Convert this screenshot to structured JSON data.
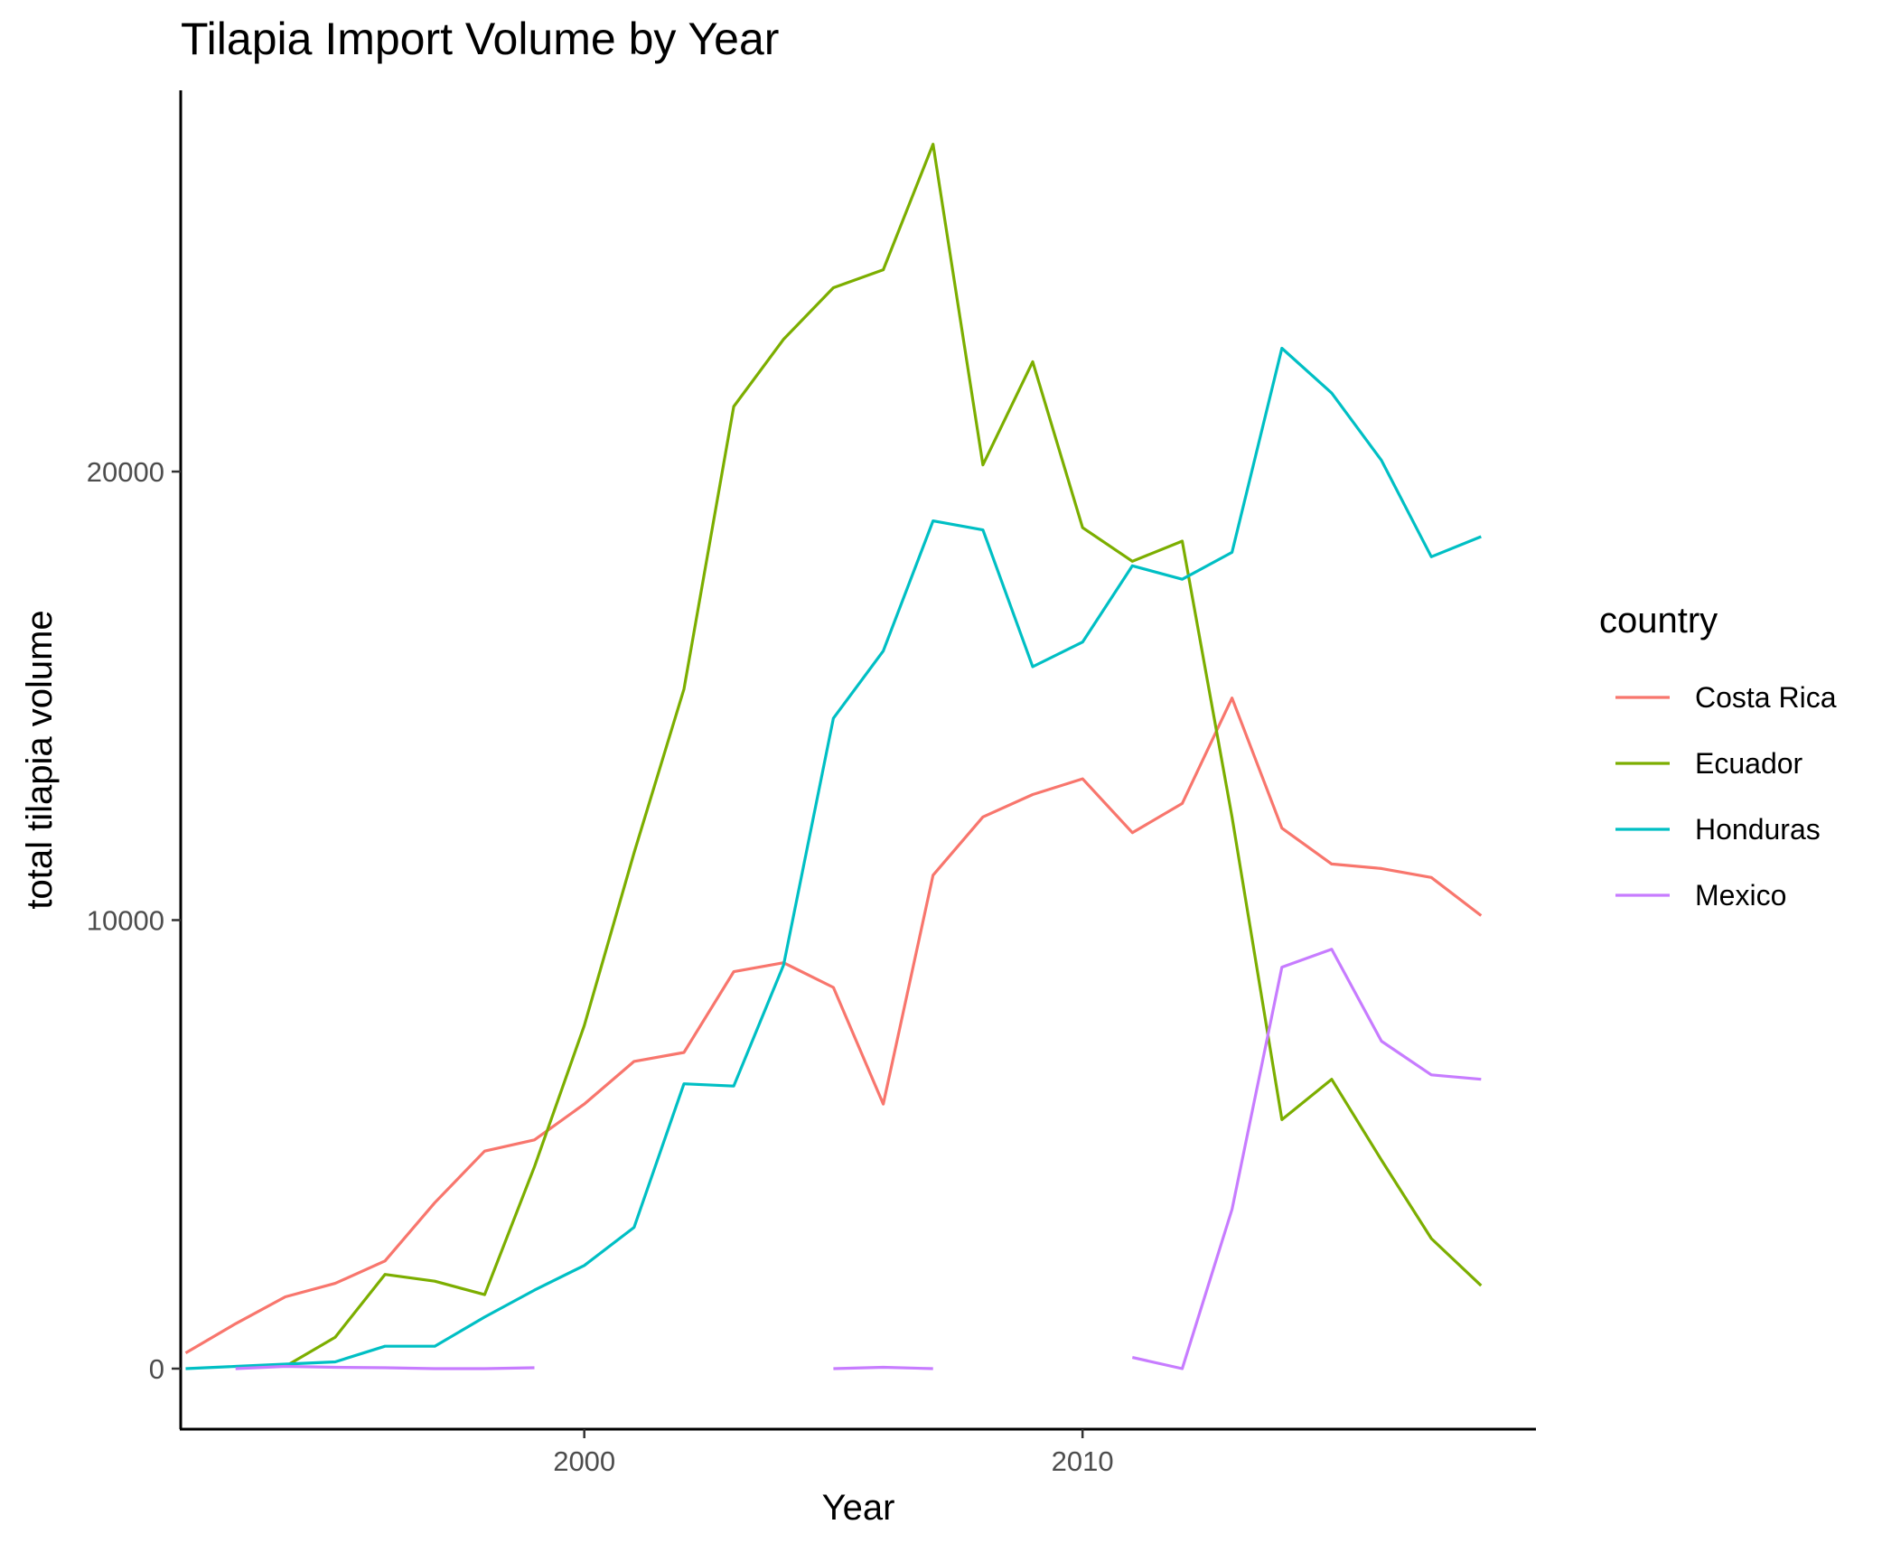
{
  "chart_data": {
    "type": "line",
    "title": "Tilapia Import Volume by Year",
    "xlabel": "Year",
    "ylabel": "total tilapia volume",
    "xlim": [
      1991.9,
      2019.1
    ],
    "ylim": [
      -1350,
      28500
    ],
    "x_ticks": [
      2000,
      2010
    ],
    "y_ticks": [
      0,
      10000,
      20000
    ],
    "grid": false,
    "legend": {
      "title": "country",
      "position": "right"
    },
    "series": [
      {
        "name": "Costa Rica",
        "color": "#F8766D",
        "points": [
          [
            1992,
            350
          ],
          [
            1993,
            1000
          ],
          [
            1994,
            1600
          ],
          [
            1995,
            1900
          ],
          [
            1996,
            2400
          ],
          [
            1997,
            3700
          ],
          [
            1998,
            4850
          ],
          [
            1999,
            5100
          ],
          [
            2000,
            5900
          ],
          [
            2001,
            6850
          ],
          [
            2002,
            7050
          ],
          [
            2003,
            8850
          ],
          [
            2004,
            9050
          ],
          [
            2005,
            8500
          ],
          [
            2006,
            5900
          ],
          [
            2007,
            11000
          ],
          [
            2008,
            12300
          ],
          [
            2009,
            12800
          ],
          [
            2010,
            13150
          ],
          [
            2011,
            11950
          ],
          [
            2012,
            12600
          ],
          [
            2013,
            14950
          ],
          [
            2014,
            12050
          ],
          [
            2015,
            11250
          ],
          [
            2016,
            11150
          ],
          [
            2017,
            10950
          ],
          [
            2018,
            10100
          ]
        ]
      },
      {
        "name": "Ecuador",
        "color": "#7CAE00",
        "points": [
          [
            1994,
            50
          ],
          [
            1995,
            700
          ],
          [
            1996,
            2100
          ],
          [
            1997,
            1950
          ],
          [
            1998,
            1650
          ],
          [
            1999,
            4500
          ],
          [
            2000,
            7650
          ],
          [
            2001,
            11500
          ],
          [
            2002,
            15150
          ],
          [
            2003,
            21450
          ],
          [
            2004,
            22950
          ],
          [
            2005,
            24100
          ],
          [
            2006,
            24500
          ],
          [
            2007,
            27300
          ],
          [
            2008,
            20150
          ],
          [
            2009,
            22450
          ],
          [
            2010,
            18750
          ],
          [
            2011,
            18000
          ],
          [
            2012,
            18450
          ],
          [
            2013,
            12300
          ],
          [
            2014,
            5550
          ],
          [
            2015,
            6450
          ],
          [
            2016,
            4650
          ],
          [
            2017,
            2900
          ],
          [
            2018,
            1850
          ]
        ]
      },
      {
        "name": "Honduras",
        "color": "#00BFC4",
        "points": [
          [
            1992,
            0
          ],
          [
            1993,
            50
          ],
          [
            1994,
            100
          ],
          [
            1995,
            150
          ],
          [
            1996,
            500
          ],
          [
            1997,
            500
          ],
          [
            1998,
            1150
          ],
          [
            1999,
            1750
          ],
          [
            2000,
            2300
          ],
          [
            2001,
            3150
          ],
          [
            2002,
            6350
          ],
          [
            2003,
            6300
          ],
          [
            2004,
            9000
          ],
          [
            2005,
            14500
          ],
          [
            2006,
            16000
          ],
          [
            2007,
            18900
          ],
          [
            2008,
            18700
          ],
          [
            2009,
            15650
          ],
          [
            2010,
            16200
          ],
          [
            2011,
            17900
          ],
          [
            2012,
            17600
          ],
          [
            2013,
            18200
          ],
          [
            2014,
            22750
          ],
          [
            2015,
            21750
          ],
          [
            2016,
            20250
          ],
          [
            2017,
            18100
          ],
          [
            2018,
            18550
          ]
        ]
      },
      {
        "name": "Mexico",
        "color": "#C77CFF",
        "points": [
          [
            1993,
            0
          ],
          [
            1994,
            50
          ],
          [
            1995,
            30
          ],
          [
            1996,
            20
          ],
          [
            1997,
            0
          ],
          [
            1998,
            0
          ],
          [
            1999,
            20
          ],
          [
            2000,
            null
          ],
          [
            2001,
            null
          ],
          [
            2002,
            null
          ],
          [
            2003,
            null
          ],
          [
            2004,
            null
          ],
          [
            2005,
            0
          ],
          [
            2006,
            30
          ],
          [
            2007,
            0
          ],
          [
            2008,
            null
          ],
          [
            2009,
            null
          ],
          [
            2010,
            null
          ],
          [
            2011,
            250
          ],
          [
            2012,
            0
          ],
          [
            2013,
            3550
          ],
          [
            2014,
            8950
          ],
          [
            2015,
            9350
          ],
          [
            2016,
            7300
          ],
          [
            2017,
            6550
          ],
          [
            2018,
            6450
          ]
        ]
      }
    ]
  }
}
